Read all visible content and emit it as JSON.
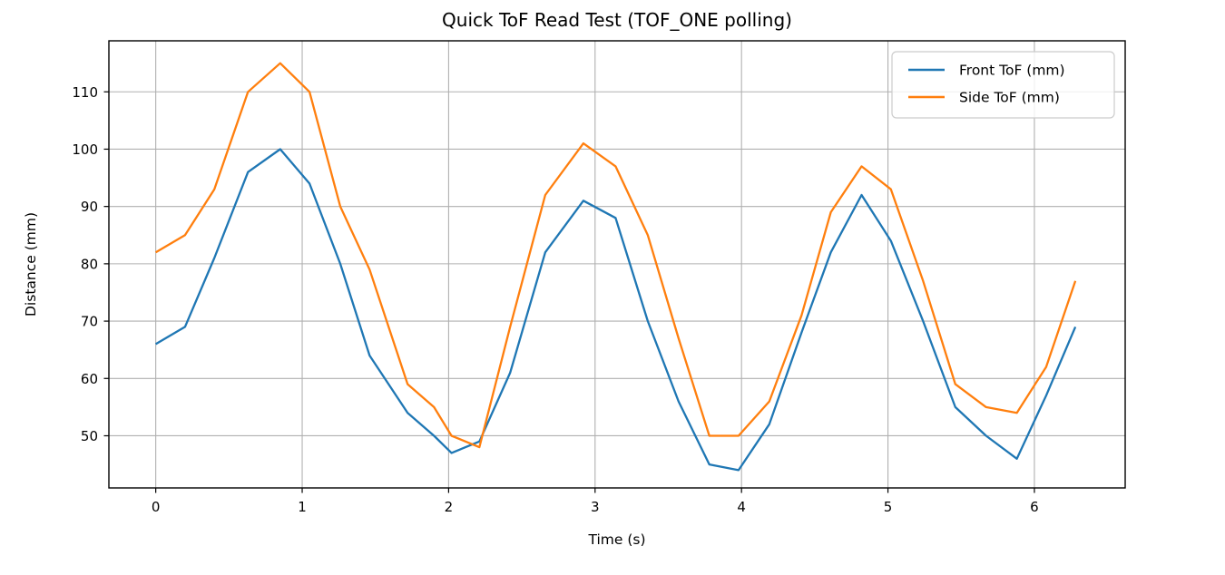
{
  "chart_data": {
    "type": "line",
    "title": "Quick ToF Read Test (TOF_ONE polling)",
    "xlabel": "Time (s)",
    "ylabel": "Distance (mm)",
    "xlim": [
      -0.32,
      6.62
    ],
    "ylim": [
      40.9,
      118.9
    ],
    "xticks": [
      0,
      1,
      2,
      3,
      4,
      5,
      6
    ],
    "yticks": [
      50,
      60,
      70,
      80,
      90,
      100,
      110
    ],
    "grid": true,
    "grid_color": "#b0b0b0",
    "spine_color": "#000000",
    "legend_position": "upper right",
    "x": [
      0.0,
      0.2,
      0.4,
      0.63,
      0.85,
      1.05,
      1.26,
      1.46,
      1.72,
      1.9,
      2.02,
      2.21,
      2.42,
      2.66,
      2.92,
      3.14,
      3.36,
      3.57,
      3.78,
      3.98,
      4.19,
      4.41,
      4.61,
      4.82,
      5.02,
      5.24,
      5.46,
      5.67,
      5.88,
      6.08,
      6.28
    ],
    "series": [
      {
        "name": "Front ToF (mm)",
        "color": "#1f77b4",
        "values": [
          66,
          69,
          81,
          96,
          100,
          94,
          80,
          64,
          54,
          50,
          47,
          49,
          61,
          82,
          91,
          88,
          70,
          56,
          45,
          44,
          52,
          68,
          82,
          92,
          84,
          70,
          55,
          50,
          46,
          57,
          69
        ]
      },
      {
        "name": "Side ToF (mm)",
        "color": "#ff7f0e",
        "values": [
          82,
          85,
          93,
          110,
          115,
          110,
          90,
          79,
          59,
          55,
          50,
          48,
          69,
          92,
          101,
          97,
          85,
          67,
          50,
          50,
          56,
          71,
          89,
          97,
          93,
          77,
          59,
          55,
          54,
          62,
          77
        ]
      }
    ]
  }
}
